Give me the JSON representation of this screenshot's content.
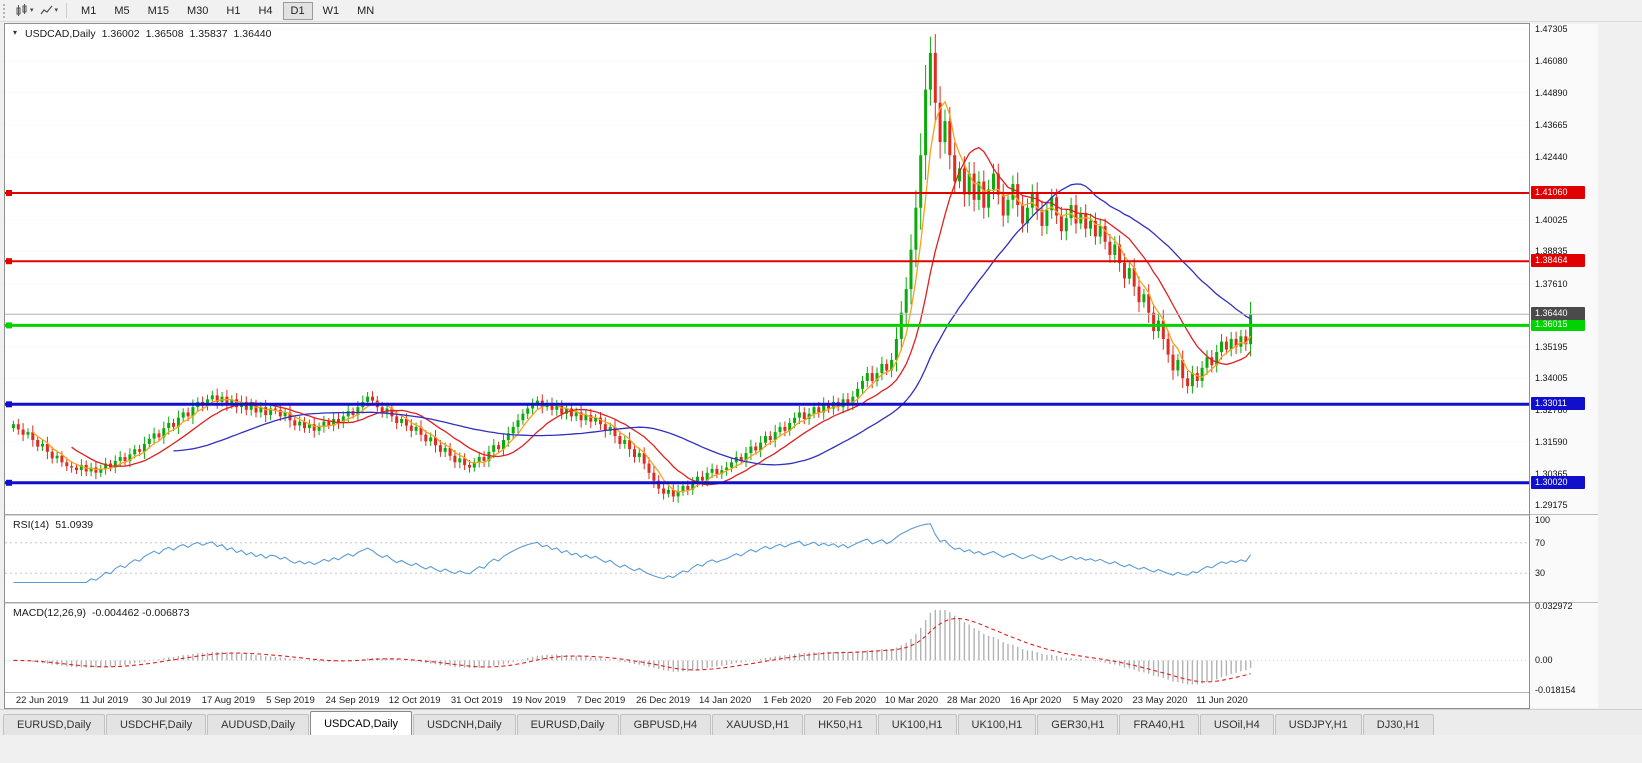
{
  "toolbar": {
    "icons": [
      "chart-type-icon",
      "indicators-icon"
    ],
    "timeframes": [
      "M1",
      "M5",
      "M15",
      "M30",
      "H1",
      "H4",
      "D1",
      "W1",
      "MN"
    ],
    "active_timeframe": "D1"
  },
  "chart_info": {
    "symbol": "USDCAD,Daily",
    "open": "1.36002",
    "high": "1.36508",
    "low": "1.35837",
    "close": "1.36440"
  },
  "tabs": {
    "active_index": 3,
    "items": [
      "EURUSD,Daily",
      "USDCHF,Daily",
      "AUDUSD,Daily",
      "USDCAD,Daily",
      "USDCNH,Daily",
      "EURUSD,Daily",
      "GBPUSD,H4",
      "XAUUSD,H1",
      "HK50,H1",
      "UK100,H1",
      "UK100,H1",
      "GER30,H1",
      "FRA40,H1",
      "USOil,H4",
      "USDJPY,H1",
      "DJ30,H1"
    ]
  },
  "chart_data": {
    "type": "candlestick",
    "symbol": "USDCAD",
    "timeframe": "Daily",
    "up_color": "#0caa0c",
    "down_color": "#e02b20",
    "x_labels": [
      "22 Jun 2019",
      "11 Jul 2019",
      "30 Jul 2019",
      "17 Aug 2019",
      "5 Sep 2019",
      "24 Sep 2019",
      "12 Oct 2019",
      "31 Oct 2019",
      "19 Nov 2019",
      "7 Dec 2019",
      "26 Dec 2019",
      "14 Jan 2020",
      "1 Feb 2020",
      "20 Feb 2020",
      "10 Mar 2020",
      "28 Mar 2020",
      "16 Apr 2020",
      "5 May 2020",
      "23 May 2020",
      "11 Jun 2020"
    ],
    "closes": [
      1.3225,
      1.3205,
      1.3185,
      1.3195,
      1.3165,
      1.314,
      1.315,
      1.312,
      1.3095,
      1.3105,
      1.308,
      1.3065,
      1.306,
      1.305,
      1.307,
      1.3045,
      1.306,
      1.304,
      1.3055,
      1.3075,
      1.306,
      1.3085,
      1.31,
      1.3085,
      1.311,
      1.313,
      1.312,
      1.315,
      1.317,
      1.319,
      1.3175,
      1.321,
      1.323,
      1.3215,
      1.325,
      1.327,
      1.3255,
      1.329,
      1.331,
      1.3295,
      1.332,
      1.3335,
      1.331,
      1.333,
      1.33,
      1.332,
      1.329,
      1.331,
      1.328,
      1.33,
      1.327,
      1.329,
      1.326,
      1.3285,
      1.328,
      1.3255,
      1.327,
      1.324,
      1.322,
      1.3235,
      1.321,
      1.3225,
      1.32,
      1.3215,
      1.3235,
      1.322,
      1.3245,
      1.323,
      1.3255,
      1.3275,
      1.326,
      1.329,
      1.331,
      1.333,
      1.3315,
      1.329,
      1.327,
      1.3285,
      1.3255,
      1.323,
      1.3245,
      1.322,
      1.32,
      1.3215,
      1.3185,
      1.316,
      1.3175,
      1.3145,
      1.312,
      1.3135,
      1.3105,
      1.308,
      1.3095,
      1.307,
      1.306,
      1.308,
      1.31,
      1.3085,
      1.312,
      1.3145,
      1.313,
      1.3165,
      1.319,
      1.3215,
      1.324,
      1.3265,
      1.3285,
      1.33,
      1.3315,
      1.329,
      1.3305,
      1.328,
      1.3295,
      1.3265,
      1.3285,
      1.3255,
      1.327,
      1.324,
      1.326,
      1.3235,
      1.325,
      1.3225,
      1.32,
      1.3215,
      1.318,
      1.315,
      1.3165,
      1.313,
      1.31,
      1.3115,
      1.3075,
      1.304,
      1.301,
      1.298,
      1.296,
      1.2975,
      1.295,
      1.297,
      1.299,
      1.2975,
      1.3005,
      1.3025,
      1.301,
      1.304,
      1.3055,
      1.3035,
      1.305,
      1.306,
      1.308,
      1.31,
      1.3085,
      1.3115,
      1.314,
      1.3125,
      1.3155,
      1.318,
      1.3165,
      1.3195,
      1.3215,
      1.32,
      1.323,
      1.325,
      1.327,
      1.3245,
      1.3265,
      1.329,
      1.327,
      1.33,
      1.3285,
      1.331,
      1.329,
      1.332,
      1.33,
      1.333,
      1.336,
      1.339,
      1.342,
      1.339,
      1.342,
      1.3455,
      1.343,
      1.347,
      1.355,
      1.365,
      1.374,
      1.389,
      1.405,
      1.425,
      1.45,
      1.464,
      1.445,
      1.43,
      1.438,
      1.425,
      1.415,
      1.42,
      1.41,
      1.418,
      1.408,
      1.415,
      1.405,
      1.412,
      1.418,
      1.41,
      1.402,
      1.408,
      1.414,
      1.406,
      1.399,
      1.405,
      1.411,
      1.404,
      1.398,
      1.404,
      1.409,
      1.402,
      1.396,
      1.401,
      1.406,
      1.399,
      1.403,
      1.397,
      1.4,
      1.394,
      1.398,
      1.392,
      1.387,
      1.391,
      1.384,
      1.378,
      1.382,
      1.375,
      1.369,
      1.372,
      1.365,
      1.358,
      1.362,
      1.355,
      1.349,
      1.343,
      1.347,
      1.34,
      1.337,
      1.342,
      1.339,
      1.344,
      1.348,
      1.345,
      1.35,
      1.354,
      1.351,
      1.355,
      1.352,
      1.356,
      1.353,
      1.3644
    ],
    "price_axis": {
      "max": 1.475,
      "min": 1.2883,
      "ticks": [
        1.47305,
        1.4608,
        1.4489,
        1.43665,
        1.4244,
        1.40025,
        1.38835,
        1.3761,
        1.35195,
        1.34005,
        1.3278,
        1.3159,
        1.30365,
        1.29175
      ]
    },
    "moving_averages": [
      {
        "period": 5,
        "color": "#f7a21b"
      },
      {
        "period": 13,
        "color": "#e02020"
      },
      {
        "period": 34,
        "color": "#3030c0"
      }
    ],
    "hlines": [
      {
        "price": 1.4106,
        "label": "1.41060",
        "color": "#e00000",
        "width": 2
      },
      {
        "price": 1.38464,
        "label": "1.38464",
        "color": "#e00000",
        "width": 2
      },
      {
        "price": 1.36015,
        "label": "1.36015",
        "color": "#00d300",
        "width": 3
      },
      {
        "price": 1.33011,
        "label": "1.33011",
        "color": "#1010cc",
        "width": 3
      },
      {
        "price": 1.3002,
        "label": "1.30020",
        "color": "#1010cc",
        "width": 3
      }
    ],
    "current_price": {
      "value": 1.3644,
      "label": "1.36440",
      "color": "#4a4a4a",
      "line_color": "#b0b0b0"
    },
    "rsi": {
      "name": "RSI(14)",
      "value": "51.0939",
      "period": 14,
      "color": "#5b9bd5",
      "levels": [
        70,
        30
      ],
      "ticks": [
        "100",
        "70",
        "30"
      ]
    },
    "macd": {
      "name": "MACD(12,26,9)",
      "values": "-0.004462 -0.006873",
      "fast": 12,
      "slow": 26,
      "signal": 9,
      "hist_color": "#b2b2b2",
      "signal_color": "#e02020",
      "axis": {
        "max": 0.032972,
        "min": -0.018154,
        "ticks": [
          "0.032972",
          "0.00",
          "-0.018154"
        ]
      }
    }
  }
}
